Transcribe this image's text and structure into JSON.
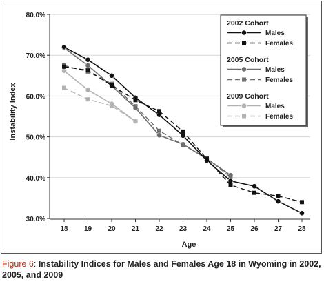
{
  "caption": {
    "label": "Figure 6",
    "separator": ": ",
    "text": "Instability Indices for Males and Females Age 18 in Wyoming in 2002, 2005, and 2009"
  },
  "chart_data": {
    "type": "line",
    "xlabel": "Age",
    "ylabel": "Instability Index",
    "x": [
      18,
      19,
      20,
      21,
      22,
      23,
      24,
      25,
      26,
      27,
      28
    ],
    "yticks": [
      "30.0%",
      "40.0%",
      "50.0%",
      "60.0%",
      "70.0%",
      "80.0%"
    ],
    "ylim": [
      30,
      80
    ],
    "legend_position": "top-right",
    "cohorts": [
      {
        "title": "2002 Cohort",
        "color": "#111111",
        "series": [
          {
            "name": "Males",
            "dash": false,
            "marker": "circle",
            "x": [
              18,
              19,
              20,
              21,
              22,
              23,
              24,
              25,
              26,
              27,
              28
            ],
            "values": [
              72.0,
              68.9,
              65.0,
              59.6,
              55.4,
              50.3,
              44.2,
              39.2,
              37.9,
              34.2,
              31.3
            ]
          },
          {
            "name": "Females",
            "dash": true,
            "marker": "square",
            "x": [
              18,
              19,
              20,
              21,
              22,
              23,
              24,
              25,
              26,
              27,
              28
            ],
            "values": [
              67.2,
              66.3,
              62.6,
              59.0,
              56.3,
              51.3,
              44.6,
              38.2,
              36.3,
              35.5,
              34.0
            ]
          }
        ]
      },
      {
        "title": "2005 Cohort",
        "color": "#6e6e6e",
        "series": [
          {
            "name": "Males",
            "dash": false,
            "marker": "circle",
            "x": [
              18,
              19,
              20,
              21,
              22,
              23,
              24,
              25
            ],
            "values": [
              71.8,
              67.5,
              62.5,
              57.1,
              50.4,
              48.2,
              44.6,
              40.6
            ]
          },
          {
            "name": "Females",
            "dash": true,
            "marker": "square",
            "x": [
              18,
              19,
              20,
              21,
              22,
              23,
              24,
              25
            ],
            "values": [
              67.5,
              66.0,
              63.0,
              57.5,
              51.5,
              48.0,
              44.8,
              40.1
            ]
          }
        ]
      },
      {
        "title": "2009 Cohort",
        "color": "#b3b3b3",
        "series": [
          {
            "name": "Males",
            "dash": false,
            "marker": "circle",
            "x": [
              18,
              19,
              20,
              21
            ],
            "values": [
              66.2,
              61.5,
              58.1,
              53.8
            ]
          },
          {
            "name": "Females",
            "dash": true,
            "marker": "square",
            "x": [
              18,
              19,
              20,
              21
            ],
            "values": [
              62.0,
              59.2,
              57.6,
              53.8
            ]
          }
        ]
      }
    ]
  }
}
